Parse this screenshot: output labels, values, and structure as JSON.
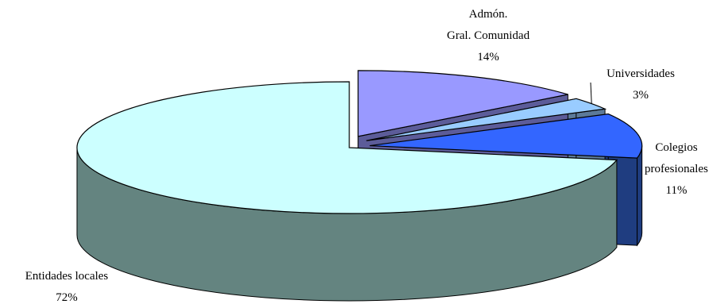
{
  "chart_data": {
    "type": "pie",
    "title": "",
    "slices": [
      {
        "name": "Admón. Gral. Comunidad",
        "label_lines": [
          "Admón.",
          "Gral. Comunidad"
        ],
        "value": 14,
        "value_label": "14%",
        "top_color": "#9999ff",
        "side_color": "#5c5c99",
        "exploded": true
      },
      {
        "name": "Universidades",
        "label_lines": [
          "Universidades"
        ],
        "value": 3,
        "value_label": "3%",
        "top_color": "#99ccff",
        "side_color": "#5c7a99",
        "exploded": true
      },
      {
        "name": "Colegios profesionales",
        "label_lines": [
          "Colegios",
          "profesionales"
        ],
        "value": 11,
        "value_label": "11%",
        "top_color": "#3366ff",
        "side_color": "#1f3d80",
        "exploded": true
      },
      {
        "name": "Entidades locales",
        "label_lines": [
          "Entidades locales"
        ],
        "value": 72,
        "value_label": "72%",
        "top_color": "#ccffff",
        "side_color": "#648480",
        "exploded": false
      }
    ]
  }
}
